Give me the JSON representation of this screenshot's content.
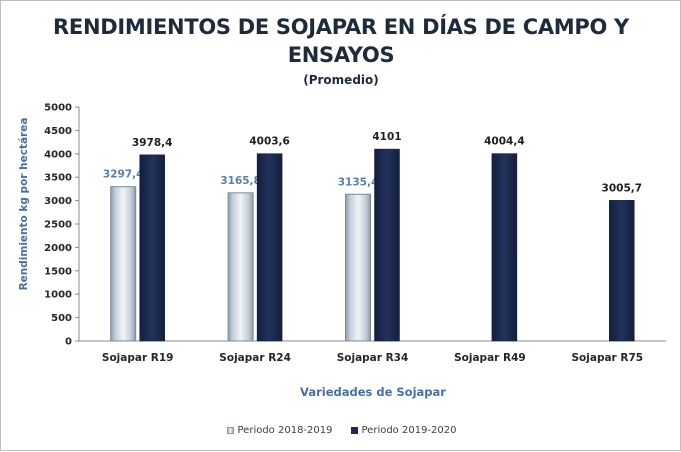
{
  "chart_data": {
    "type": "bar",
    "title": "RENDIMIENTOS DE SOJAPAR EN DÍAS DE CAMPO Y ENSAYOS",
    "subtitle": "(Promedio)",
    "xlabel": "Variedades de Sojapar",
    "ylabel": "Rendimiento kg por hectárea",
    "ylim": [
      0,
      5000
    ],
    "yticks": [
      "0",
      "500",
      "1000",
      "1500",
      "2000",
      "2500",
      "3000",
      "3500",
      "4000",
      "4500",
      "5000"
    ],
    "categories": [
      "Sojapar R19",
      "Sojapar R24",
      "Sojapar R34",
      "Sojapar R49",
      "Sojapar R75"
    ],
    "series": [
      {
        "name": "Periodo 2018-2019",
        "values": [
          3297.4,
          3165.8,
          3135.4,
          null,
          null
        ],
        "labels": [
          "3297,4",
          "3165,8",
          "3135,4",
          "",
          ""
        ],
        "color": "#c9d3de",
        "label_color": "#5b7fa8"
      },
      {
        "name": "Periodo 2019-2020",
        "values": [
          3978.4,
          4003.6,
          4101,
          4004.4,
          3005.7
        ],
        "labels": [
          "3978,4",
          "4003,6",
          "4101",
          "4004,4",
          "3005,7"
        ],
        "color": "#1c2a52",
        "label_color": "#1f1f1f"
      }
    ],
    "grid": false,
    "legend_position": "bottom"
  }
}
